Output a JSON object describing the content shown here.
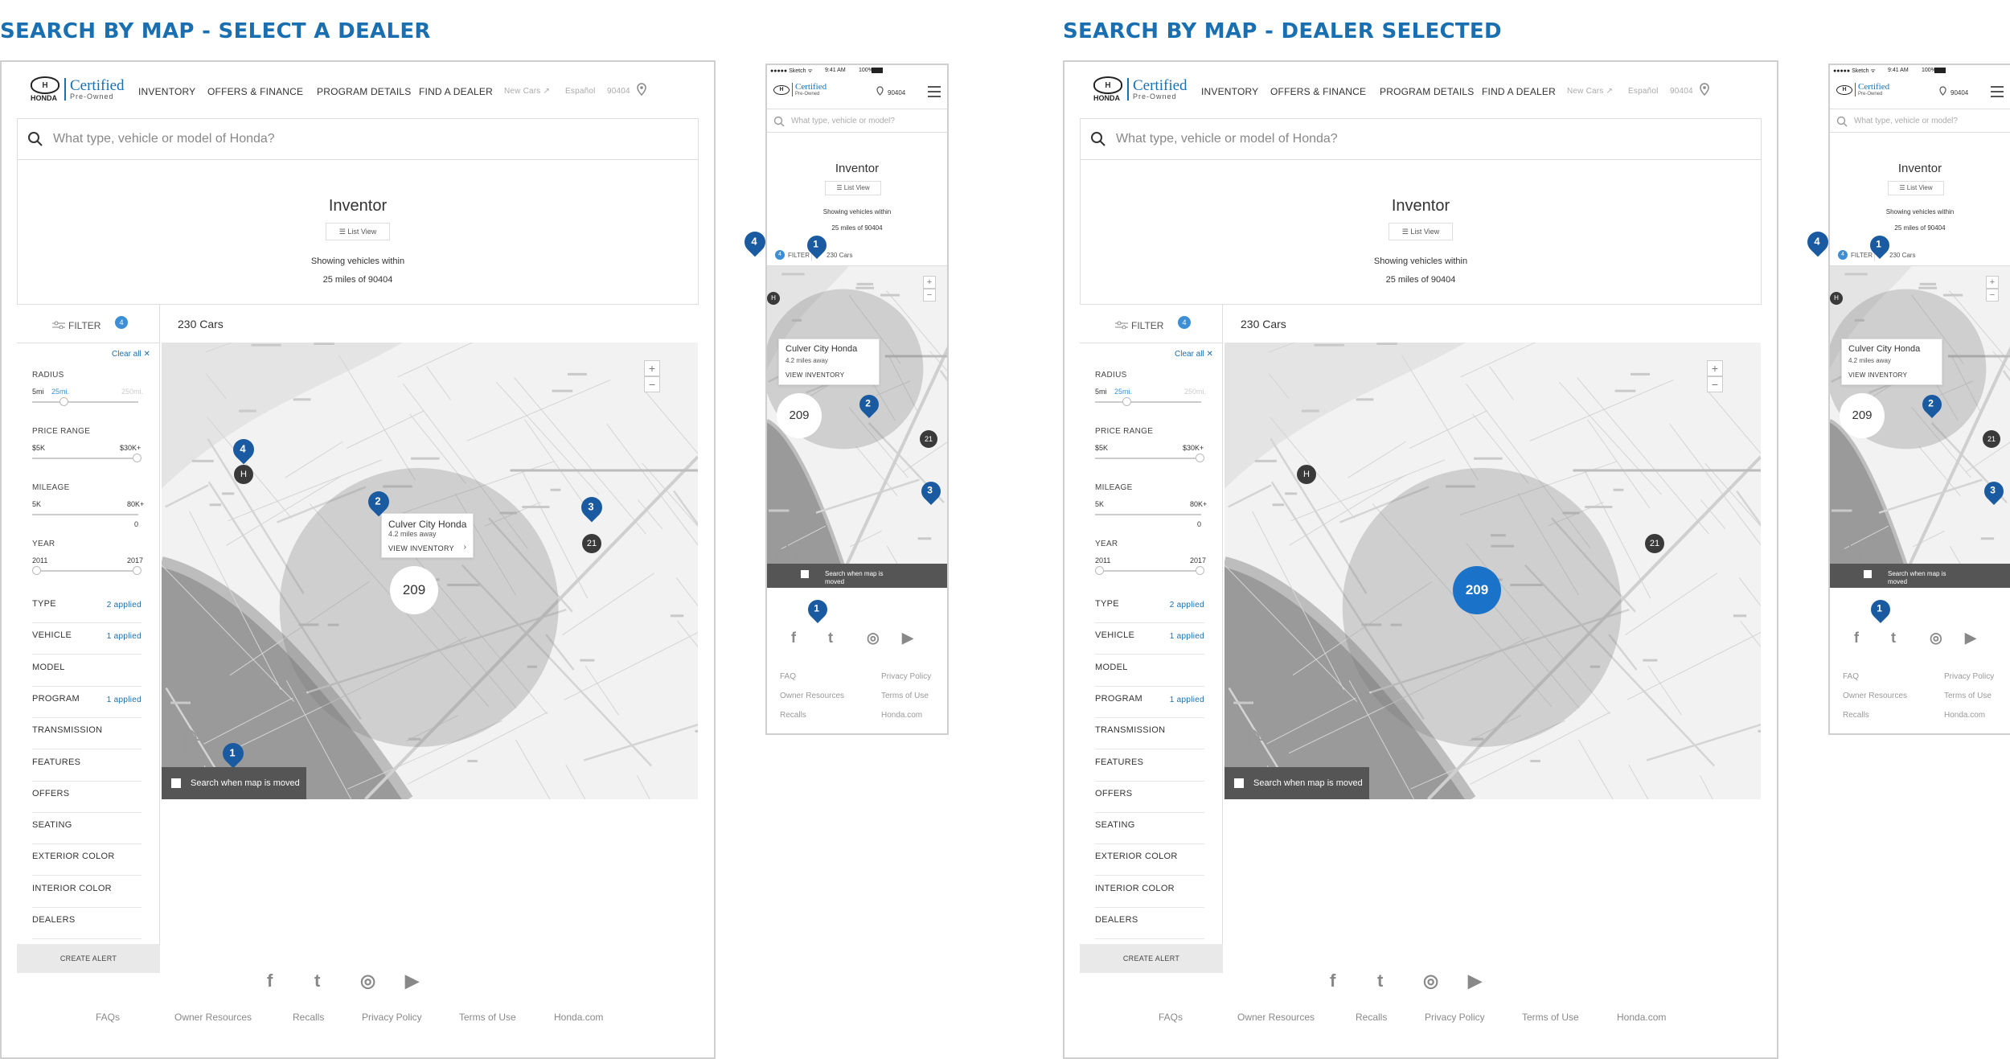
{
  "titles": {
    "left": "SEARCH BY MAP - SELECT A DEALER",
    "right": "SEARCH BY MAP - DEALER SELECTED"
  },
  "brand": {
    "honda": "HONDA",
    "certified": "Certified",
    "preowned": "Pre-Owned",
    "h": "H"
  },
  "nav": {
    "inventory": "INVENTORY",
    "offers": "OFFERS & FINANCE",
    "program": "PROGRAM DETAILS",
    "dealer": "FIND A DEALER",
    "newcars": "New Cars ↗",
    "espanol": "Español",
    "zip": "90404"
  },
  "search": {
    "placeholder": "What type, vehicle or model of Honda?",
    "mobile_placeholder": "What type, vehicle or model?"
  },
  "hero": {
    "title": "Inventor",
    "list_view": "List View",
    "showing1": "Showing vehicles within",
    "showing2": "25 miles of 90404"
  },
  "filter": {
    "label": "FILTER",
    "count": "4",
    "clear_all": "Clear all ✕",
    "radius": "RADIUS",
    "radius_min": "5mi",
    "radius_sel": "25mi.",
    "radius_max": "250mi.",
    "price": "PRICE RANGE",
    "price_min": "$5K",
    "price_max": "$30K+",
    "mileage": "MILEAGE",
    "mileage_min": "5K",
    "mileage_max": "80K+",
    "mileage_zero": "0",
    "year": "YEAR",
    "year_min": "2011",
    "year_max": "2017",
    "categories": [
      {
        "label": "TYPE",
        "applied": "2 applied"
      },
      {
        "label": "VEHICLE",
        "applied": "1 applied"
      },
      {
        "label": "MODEL",
        "applied": ""
      },
      {
        "label": "PROGRAM",
        "applied": "1 applied"
      },
      {
        "label": "TRANSMISSION",
        "applied": ""
      },
      {
        "label": "FEATURES",
        "applied": ""
      },
      {
        "label": "OFFERS",
        "applied": ""
      },
      {
        "label": "SEATING",
        "applied": ""
      },
      {
        "label": "EXTERIOR COLOR",
        "applied": ""
      },
      {
        "label": "INTERIOR COLOR",
        "applied": ""
      },
      {
        "label": "DEALERS",
        "applied": ""
      }
    ],
    "create_alert": "CREATE ALERT"
  },
  "results": {
    "count": "230 Cars"
  },
  "map": {
    "dealer_name": "Culver City Honda",
    "dealer_distance": "4.2 miles away",
    "view_inventory": "VIEW INVENTORY",
    "cluster_main": "209",
    "cluster_small": "21",
    "dealer_badge": "H",
    "search_moved": "Search when map is moved",
    "zoom_in": "+",
    "zoom_out": "−",
    "annotations": [
      "1",
      "2",
      "3",
      "4"
    ]
  },
  "footer": {
    "links": [
      "FAQs",
      "Owner Resources",
      "Recalls",
      "Privacy Policy",
      "Terms of Use",
      "Honda.com"
    ],
    "social": [
      "f",
      "t",
      "◎",
      "▶"
    ]
  },
  "mobile": {
    "status_carrier": "●●●●● Sketch ᯤ",
    "status_time": "9:41 AM",
    "status_batt": "100%",
    "zip": "90404",
    "filter_label": "FILTER",
    "filter_count": "4",
    "cars": "230 Cars",
    "search_moved": "Search when map is moved",
    "footer_left": [
      "FAQ",
      "Owner Resources",
      "Recalls"
    ],
    "footer_right": [
      "Privacy Policy",
      "Terms of Use",
      "Honda.com"
    ]
  },
  "colors": {
    "accent": "#1a6fb0",
    "pin": "#1a5aa0",
    "selected_cluster": "#1a73c8"
  }
}
